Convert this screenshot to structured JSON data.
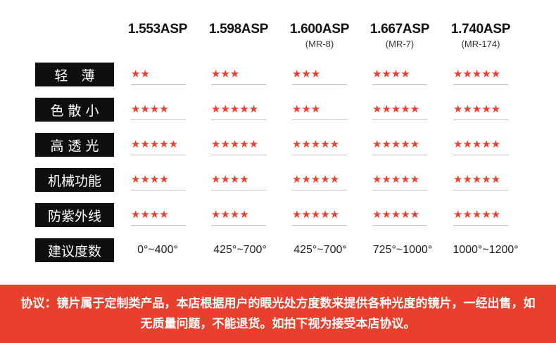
{
  "columns": [
    {
      "index": "1.553ASP",
      "code": ""
    },
    {
      "index": "1.598ASP",
      "code": ""
    },
    {
      "index": "1.600ASP",
      "code": "(MR-8)"
    },
    {
      "index": "1.667ASP",
      "code": "(MR-7)"
    },
    {
      "index": "1.740ASP",
      "code": "(MR-174)"
    }
  ],
  "rows": [
    {
      "label": "轻　薄",
      "ratings": [
        2,
        3,
        3,
        4,
        5
      ]
    },
    {
      "label": "色 散 小",
      "ratings": [
        4,
        5,
        3,
        5,
        5
      ]
    },
    {
      "label": "高 透 光",
      "ratings": [
        5,
        5,
        5,
        5,
        5
      ]
    },
    {
      "label": "机械功能",
      "ratings": [
        4,
        4,
        5,
        5,
        5
      ]
    },
    {
      "label": "防紫外线",
      "ratings": [
        4,
        4,
        5,
        5,
        5
      ]
    }
  ],
  "ranges_row": {
    "label": "建议度数",
    "values": [
      "0°~400°",
      "425°~700°",
      "425°~700°",
      "725°~1000°",
      "1000°~1200°"
    ]
  },
  "notice": {
    "text": "协议：镜片属于定制类产品，本店根据用户的眼光处方度数来提供各种光度的镜片，一经出售，如无质量问题，不能退货。如拍下视为接受本店协议。"
  },
  "colors": {
    "star": "#e8402c",
    "label_bg": "#0f0f0f",
    "notice_bg": "#e8402c"
  },
  "icons": {
    "rating": "star-icon"
  }
}
